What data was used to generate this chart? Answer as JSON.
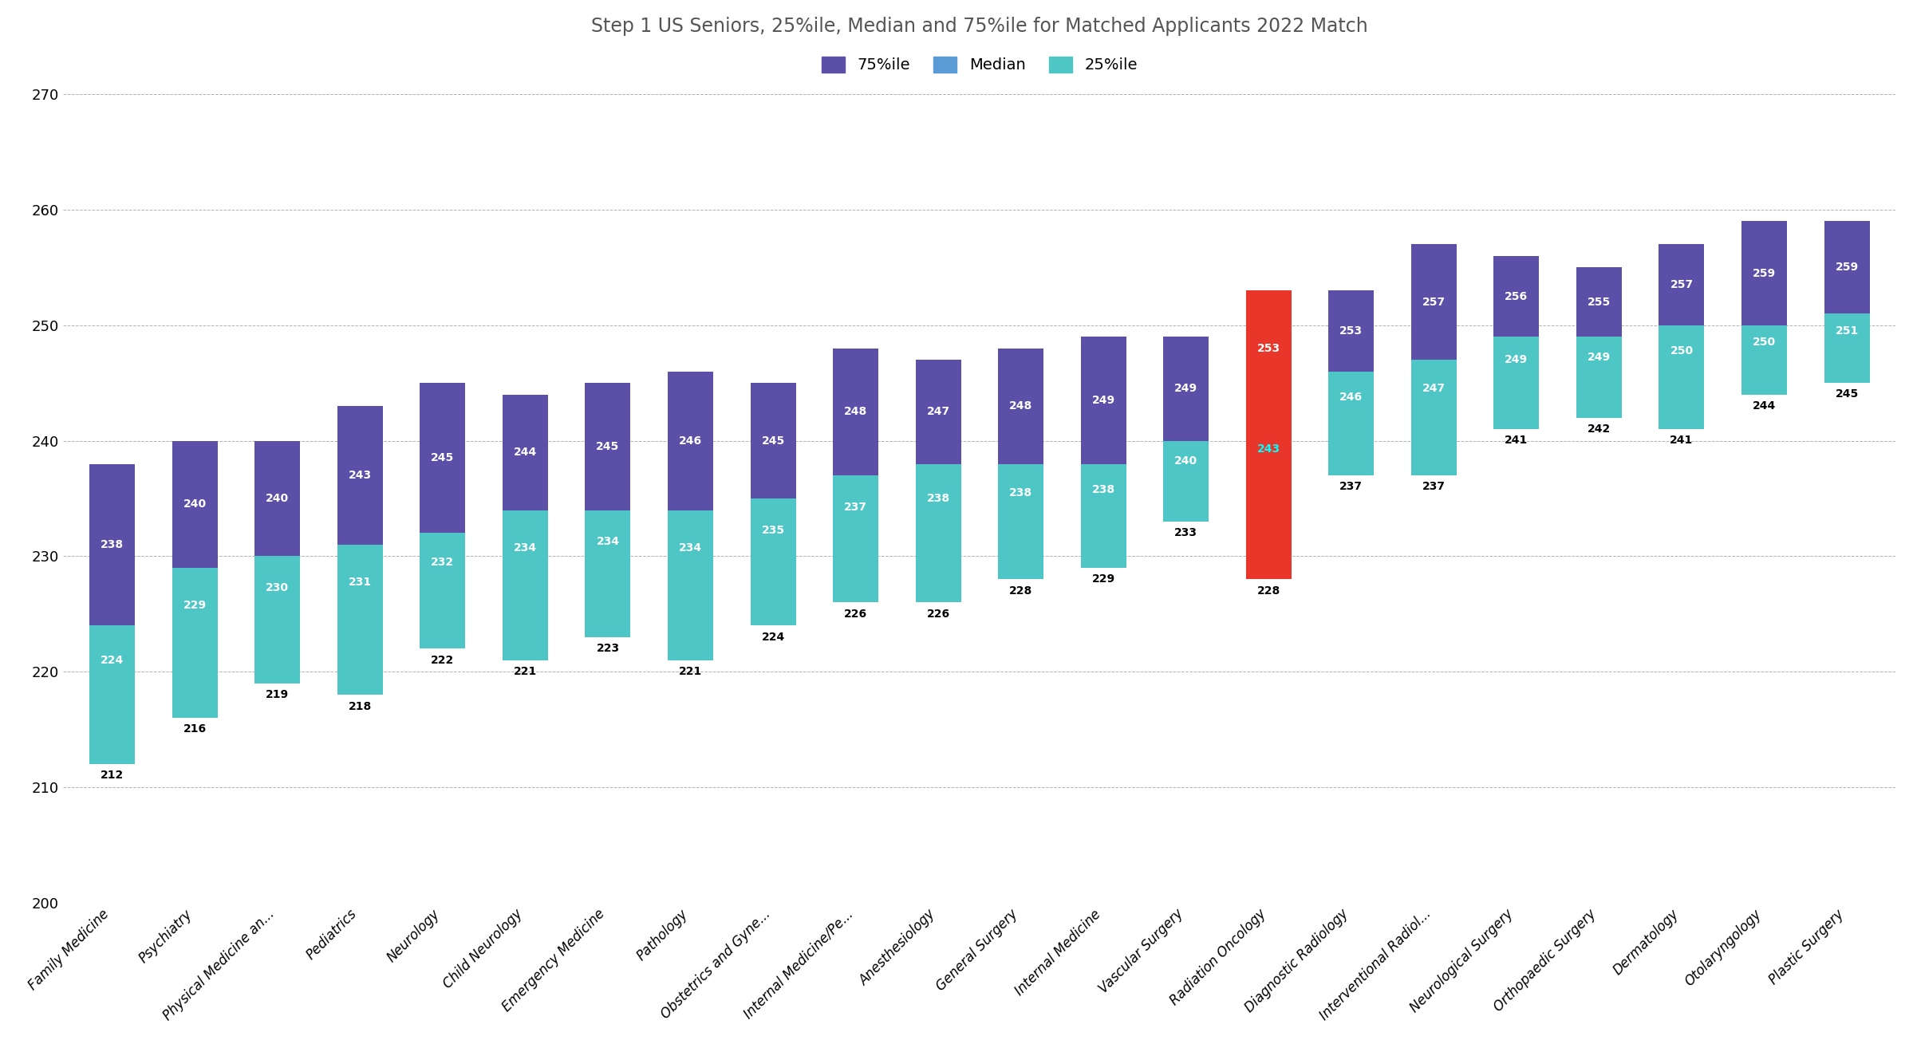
{
  "title": "Step 1 US Seniors, 25%ile, Median and 75%ile for Matched Applicants 2022 Match",
  "categories": [
    "Family Medicine",
    "Psychiatry",
    "Physical Medicine an...",
    "Pediatrics",
    "Neurology",
    "Child Neurology",
    "Emergency Medicine",
    "Pathology",
    "Obstetrics and Gyne...",
    "Internal Medicine/Pe...",
    "Anesthesiology",
    "General Surgery",
    "Internal Medicine",
    "Vascular Surgery",
    "Radiation Oncology",
    "Diagnostic Radiology",
    "Interventional Radiol...",
    "Neurological Surgery",
    "Orthopaedic Surgery",
    "Dermatology",
    "Otolaryngology",
    "Plastic Surgery"
  ],
  "p25": [
    212,
    216,
    219,
    218,
    222,
    221,
    223,
    221,
    224,
    226,
    226,
    228,
    229,
    233,
    228,
    237,
    237,
    241,
    242,
    241,
    244,
    245
  ],
  "median": [
    224,
    229,
    230,
    231,
    232,
    234,
    234,
    234,
    235,
    237,
    238,
    238,
    238,
    240,
    243,
    246,
    247,
    249,
    249,
    250,
    250,
    251
  ],
  "p75": [
    238,
    240,
    240,
    243,
    245,
    244,
    245,
    246,
    245,
    248,
    247,
    248,
    249,
    249,
    253,
    253,
    257,
    256,
    255,
    257,
    259,
    259
  ],
  "highlight_index": 14,
  "highlight_color": "#e8372a",
  "color_p75": "#5b4fa8",
  "color_median_label": "#5b9bd5",
  "color_p25": "#4ec6c6",
  "baseline": 200,
  "ylim_min": 200,
  "ylim_max": 273,
  "yticks": [
    200,
    210,
    220,
    230,
    240,
    250,
    260,
    270
  ],
  "legend_labels": [
    "75%ile",
    "Median",
    "25%ile"
  ],
  "legend_colors": [
    "#5b4fa8",
    "#5b9bd5",
    "#4ec6c6"
  ]
}
